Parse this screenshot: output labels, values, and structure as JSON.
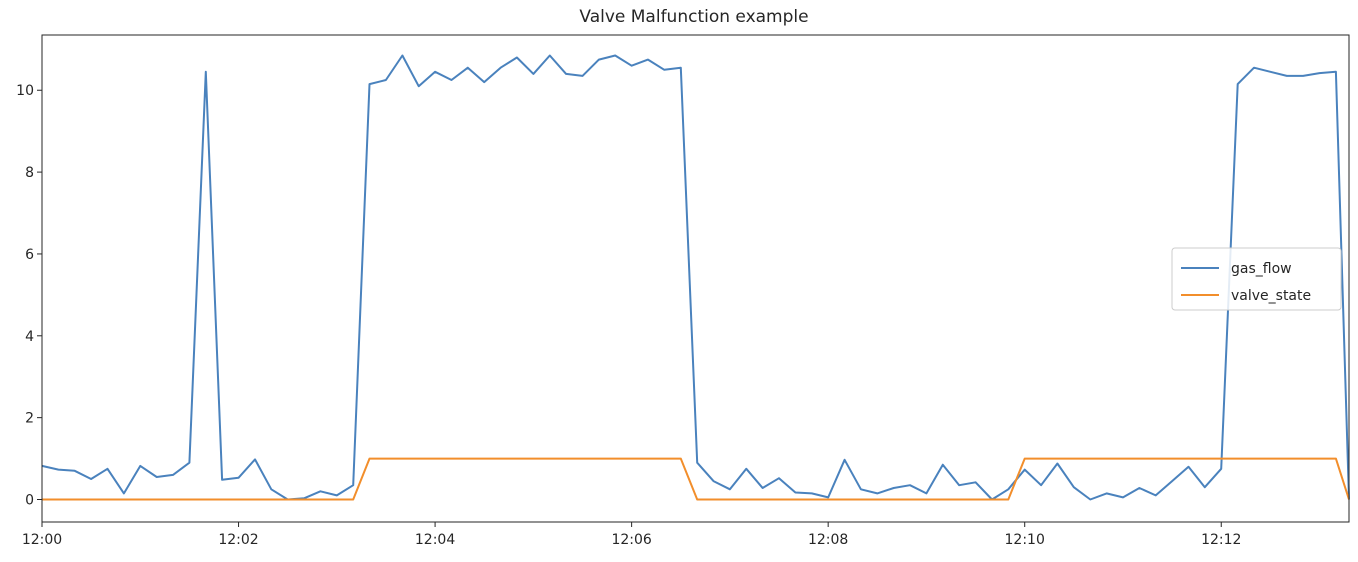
{
  "chart_data": {
    "type": "line",
    "title": "Valve Malfunction example",
    "xlabel": "",
    "ylabel": "",
    "x_unit": "minutes",
    "x_range": [
      0,
      13.3
    ],
    "ylim": [
      -0.55,
      11.35
    ],
    "x_ticks": [
      {
        "value": 0,
        "label": "12:00"
      },
      {
        "value": 2,
        "label": "12:02"
      },
      {
        "value": 4,
        "label": "12:04"
      },
      {
        "value": 6,
        "label": "12:06"
      },
      {
        "value": 8,
        "label": "12:08"
      },
      {
        "value": 10,
        "label": "12:10"
      },
      {
        "value": 12,
        "label": "12:12"
      }
    ],
    "y_ticks": [
      0,
      2,
      4,
      6,
      8,
      10
    ],
    "grid": false,
    "legend_position": "right",
    "series": [
      {
        "name": "gas_flow",
        "color": "#4a82bd",
        "x": [
          0.0,
          0.167,
          0.333,
          0.5,
          0.667,
          0.833,
          1.0,
          1.167,
          1.333,
          1.5,
          1.667,
          1.833,
          2.0,
          2.167,
          2.333,
          2.5,
          2.667,
          2.833,
          3.0,
          3.167,
          3.333,
          3.5,
          3.667,
          3.833,
          4.0,
          4.167,
          4.333,
          4.5,
          4.667,
          4.833,
          5.0,
          5.167,
          5.333,
          5.5,
          5.667,
          5.833,
          6.0,
          6.167,
          6.333,
          6.5,
          6.667,
          6.833,
          7.0,
          7.167,
          7.333,
          7.5,
          7.667,
          7.833,
          8.0,
          8.167,
          8.333,
          8.5,
          8.667,
          8.833,
          9.0,
          9.167,
          9.333,
          9.5,
          9.667,
          9.833,
          10.0,
          10.167,
          10.333,
          10.5,
          10.667,
          10.833,
          11.0,
          11.167,
          11.333,
          11.5,
          11.667,
          11.833,
          12.0,
          12.167,
          12.333,
          12.5,
          12.667,
          12.833,
          13.0,
          13.167,
          13.3
        ],
        "values": [
          0.82,
          0.73,
          0.7,
          0.5,
          0.75,
          0.15,
          0.82,
          0.55,
          0.6,
          0.9,
          10.45,
          0.48,
          0.53,
          0.98,
          0.25,
          0.0,
          0.03,
          0.2,
          0.1,
          0.35,
          10.15,
          10.25,
          10.85,
          10.1,
          10.45,
          10.25,
          10.55,
          10.2,
          10.55,
          10.8,
          10.4,
          10.85,
          10.4,
          10.35,
          10.75,
          10.85,
          10.6,
          10.75,
          10.5,
          10.55,
          0.9,
          0.45,
          0.25,
          0.75,
          0.28,
          0.52,
          0.17,
          0.15,
          0.05,
          0.97,
          0.25,
          0.15,
          0.28,
          0.35,
          0.15,
          0.85,
          0.35,
          0.42,
          0.0,
          0.25,
          0.73,
          0.35,
          0.88,
          0.3,
          0.0,
          0.15,
          0.05,
          0.28,
          0.1,
          0.45,
          0.8,
          0.3,
          0.75,
          10.15,
          10.55,
          10.45,
          10.35,
          10.35,
          10.42,
          10.45,
          0.0
        ]
      },
      {
        "name": "valve_state",
        "color": "#f28e2b",
        "x": [
          0.0,
          3.167,
          3.333,
          6.5,
          6.667,
          9.833,
          10.0,
          13.167,
          13.3
        ],
        "values": [
          0,
          0,
          1,
          1,
          0,
          0,
          1,
          1,
          0
        ]
      }
    ]
  }
}
